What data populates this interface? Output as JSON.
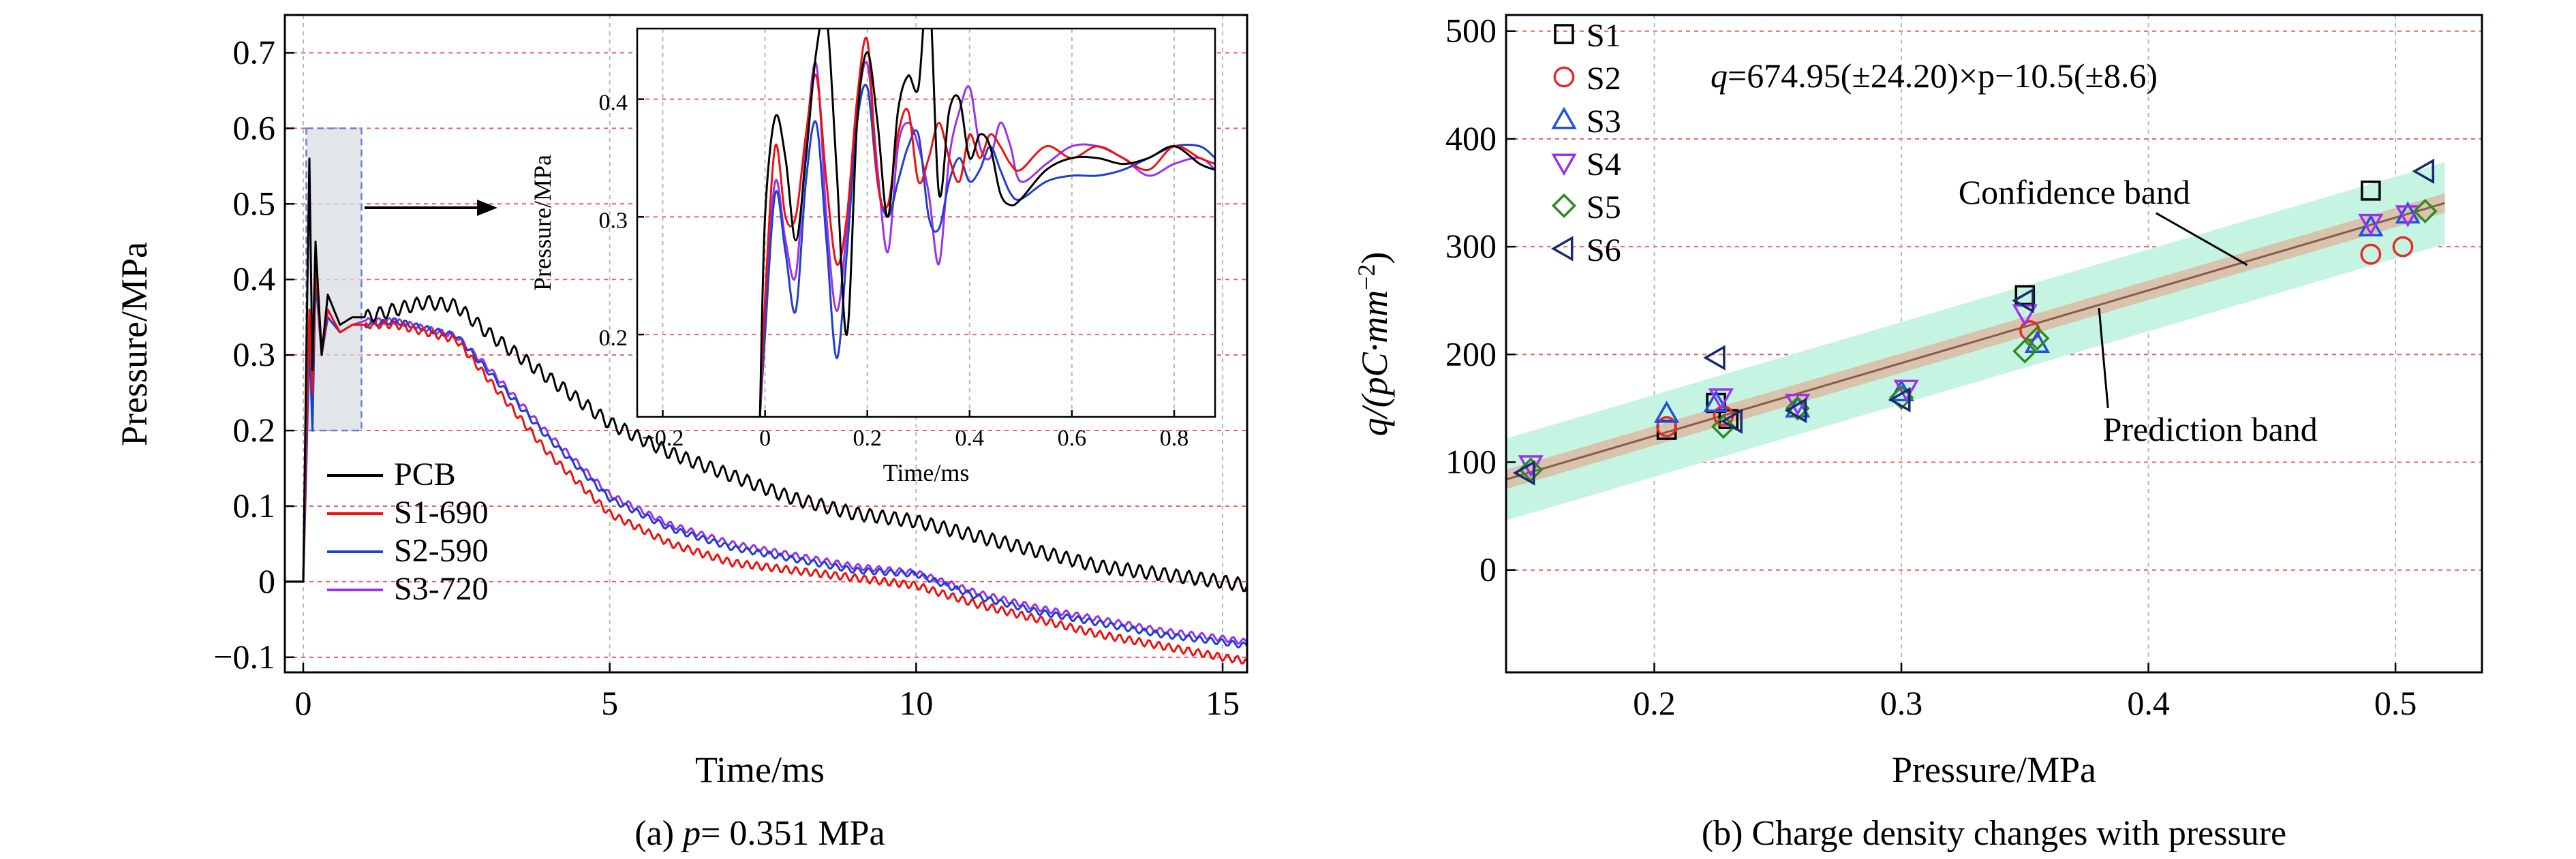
{
  "chart_data": [
    {
      "type": "line",
      "caption_prefix": "(a) ",
      "caption_var": "p",
      "caption_rest": "= 0.351 MPa",
      "xlabel": "Time/ms",
      "ylabel": "Pressure/MPa",
      "xlim": [
        -0.3,
        15.4
      ],
      "ylim": [
        -0.12,
        0.75
      ],
      "xticks": [
        "0",
        "5",
        "10",
        "15"
      ],
      "yticks": [
        "−0.1",
        "0",
        "0.1",
        "0.2",
        "0.3",
        "0.4",
        "0.5",
        "0.6",
        "0.7"
      ],
      "xtick_values": [
        0,
        5,
        10,
        15
      ],
      "ytick_values": [
        -0.1,
        0,
        0.1,
        0.2,
        0.3,
        0.4,
        0.5,
        0.6,
        0.7
      ],
      "grid": true,
      "legend_position": "bottom-left",
      "highlight_box": {
        "x": [
          0.05,
          0.95
        ],
        "y": [
          0.2,
          0.6
        ]
      },
      "series": [
        {
          "name": "PCB",
          "color": "#000000",
          "x": [
            -0.3,
            0.0,
            0.05,
            0.1,
            0.15,
            0.2,
            0.3,
            0.4,
            0.6,
            0.8,
            1.0,
            1.5,
            2.0,
            2.5,
            3.0,
            3.5,
            4.0,
            4.5,
            5.0,
            6.0,
            7.0,
            8.0,
            9.0,
            10.0,
            11.0,
            12.0,
            13.0,
            14.0,
            15.0,
            15.4
          ],
          "y": [
            0.0,
            0.0,
            0.3,
            0.56,
            0.28,
            0.45,
            0.3,
            0.38,
            0.34,
            0.35,
            0.35,
            0.36,
            0.37,
            0.365,
            0.33,
            0.3,
            0.27,
            0.24,
            0.21,
            0.17,
            0.14,
            0.11,
            0.09,
            0.08,
            0.06,
            0.04,
            0.02,
            0.01,
            0.0,
            -0.005
          ]
        },
        {
          "name": "S1-690",
          "color": "#ee1111",
          "x": [
            -0.3,
            0.0,
            0.05,
            0.1,
            0.15,
            0.2,
            0.3,
            0.4,
            0.6,
            0.8,
            1.0,
            1.5,
            2.0,
            2.5,
            3.0,
            3.5,
            4.0,
            4.5,
            5.0,
            6.0,
            7.0,
            8.0,
            9.0,
            10.0,
            11.0,
            12.0,
            13.0,
            14.0,
            15.0,
            15.4
          ],
          "y": [
            0.0,
            0.0,
            0.2,
            0.36,
            0.25,
            0.42,
            0.3,
            0.36,
            0.33,
            0.34,
            0.34,
            0.34,
            0.33,
            0.32,
            0.27,
            0.22,
            0.17,
            0.13,
            0.09,
            0.05,
            0.025,
            0.015,
            0.005,
            -0.005,
            -0.03,
            -0.05,
            -0.07,
            -0.085,
            -0.1,
            -0.105
          ]
        },
        {
          "name": "S2-590",
          "color": "#1f3fcf",
          "x": [
            -0.3,
            0.0,
            0.05,
            0.1,
            0.15,
            0.2,
            0.3,
            0.4,
            0.6,
            0.8,
            1.0,
            1.5,
            2.0,
            2.5,
            3.0,
            3.5,
            4.0,
            4.5,
            5.0,
            6.0,
            7.0,
            8.0,
            9.0,
            10.0,
            11.0,
            12.0,
            13.0,
            14.0,
            15.0,
            15.4
          ],
          "y": [
            0.0,
            0.0,
            0.15,
            0.32,
            0.2,
            0.4,
            0.3,
            0.35,
            0.33,
            0.34,
            0.34,
            0.345,
            0.335,
            0.325,
            0.28,
            0.235,
            0.19,
            0.15,
            0.11,
            0.07,
            0.045,
            0.03,
            0.015,
            0.01,
            -0.02,
            -0.04,
            -0.055,
            -0.07,
            -0.08,
            -0.085
          ]
        },
        {
          "name": "S3-720",
          "color": "#9933ee",
          "x": [
            -0.3,
            0.0,
            0.05,
            0.1,
            0.15,
            0.2,
            0.3,
            0.4,
            0.6,
            0.8,
            1.0,
            1.5,
            2.0,
            2.5,
            3.0,
            3.5,
            4.0,
            4.5,
            5.0,
            6.0,
            7.0,
            8.0,
            9.0,
            10.0,
            11.0,
            12.0,
            13.0,
            14.0,
            15.0,
            15.4
          ],
          "y": [
            0.0,
            0.0,
            0.18,
            0.34,
            0.22,
            0.42,
            0.31,
            0.36,
            0.33,
            0.34,
            0.345,
            0.345,
            0.335,
            0.325,
            0.285,
            0.24,
            0.195,
            0.155,
            0.115,
            0.075,
            0.05,
            0.035,
            0.02,
            0.012,
            -0.015,
            -0.035,
            -0.05,
            -0.065,
            -0.075,
            -0.08
          ]
        }
      ],
      "inset": {
        "xlabel": "Time/ms",
        "ylabel": "Pressure/MPa",
        "xlim": [
          -0.25,
          0.88
        ],
        "ylim": [
          0.13,
          0.46
        ],
        "xticks": [
          "−0.2",
          "0",
          "0.2",
          "0.4",
          "0.6",
          "0.8"
        ],
        "xtick_values": [
          -0.2,
          0,
          0.2,
          0.4,
          0.6,
          0.8
        ],
        "yticks": [
          "0.2",
          "0.3",
          "0.4"
        ],
        "ytick_values": [
          0.2,
          0.3,
          0.4
        ],
        "series": [
          {
            "name": "PCB",
            "color": "#000000",
            "x": [
              -0.01,
              0.0,
              0.02,
              0.04,
              0.06,
              0.08,
              0.1,
              0.12,
              0.14,
              0.16,
              0.18,
              0.2,
              0.22,
              0.24,
              0.26,
              0.28,
              0.3,
              0.32,
              0.34,
              0.36,
              0.38,
              0.4,
              0.42,
              0.44,
              0.46,
              0.48,
              0.5,
              0.55,
              0.6,
              0.65,
              0.7,
              0.75,
              0.8,
              0.85,
              0.88
            ],
            "y": [
              0.13,
              0.3,
              0.385,
              0.35,
              0.28,
              0.35,
              0.44,
              0.47,
              0.34,
              0.2,
              0.38,
              0.44,
              0.38,
              0.3,
              0.39,
              0.42,
              0.41,
              0.5,
              0.32,
              0.39,
              0.4,
              0.35,
              0.37,
              0.36,
              0.32,
              0.31,
              0.315,
              0.34,
              0.35,
              0.35,
              0.345,
              0.35,
              0.36,
              0.345,
              0.34
            ]
          },
          {
            "name": "S1-690",
            "color": "#ee1111",
            "x": [
              -0.01,
              0.0,
              0.02,
              0.04,
              0.06,
              0.08,
              0.1,
              0.12,
              0.14,
              0.16,
              0.18,
              0.2,
              0.22,
              0.24,
              0.26,
              0.28,
              0.3,
              0.32,
              0.34,
              0.36,
              0.38,
              0.4,
              0.42,
              0.44,
              0.46,
              0.48,
              0.5,
              0.55,
              0.6,
              0.65,
              0.7,
              0.75,
              0.8,
              0.85,
              0.88
            ],
            "y": [
              0.13,
              0.23,
              0.36,
              0.3,
              0.3,
              0.37,
              0.42,
              0.33,
              0.26,
              0.3,
              0.4,
              0.45,
              0.33,
              0.31,
              0.37,
              0.39,
              0.33,
              0.35,
              0.38,
              0.35,
              0.33,
              0.37,
              0.35,
              0.37,
              0.36,
              0.345,
              0.34,
              0.36,
              0.35,
              0.36,
              0.35,
              0.34,
              0.36,
              0.35,
              0.345
            ]
          },
          {
            "name": "S2-590",
            "color": "#1f3fcf",
            "x": [
              -0.01,
              0.0,
              0.02,
              0.04,
              0.06,
              0.08,
              0.1,
              0.12,
              0.14,
              0.16,
              0.18,
              0.2,
              0.22,
              0.24,
              0.26,
              0.28,
              0.3,
              0.32,
              0.34,
              0.36,
              0.38,
              0.4,
              0.42,
              0.44,
              0.46,
              0.48,
              0.5,
              0.55,
              0.6,
              0.65,
              0.7,
              0.75,
              0.8,
              0.85,
              0.88
            ],
            "y": [
              0.13,
              0.2,
              0.32,
              0.27,
              0.22,
              0.33,
              0.38,
              0.28,
              0.18,
              0.27,
              0.38,
              0.41,
              0.33,
              0.3,
              0.33,
              0.36,
              0.37,
              0.3,
              0.29,
              0.33,
              0.35,
              0.33,
              0.34,
              0.36,
              0.34,
              0.32,
              0.315,
              0.33,
              0.335,
              0.335,
              0.34,
              0.35,
              0.36,
              0.36,
              0.35
            ]
          },
          {
            "name": "S3-720",
            "color": "#9933ee",
            "x": [
              -0.01,
              0.0,
              0.02,
              0.04,
              0.06,
              0.08,
              0.1,
              0.12,
              0.14,
              0.16,
              0.18,
              0.2,
              0.22,
              0.24,
              0.26,
              0.28,
              0.3,
              0.32,
              0.34,
              0.36,
              0.38,
              0.4,
              0.42,
              0.44,
              0.46,
              0.48,
              0.5,
              0.55,
              0.6,
              0.65,
              0.7,
              0.75,
              0.8,
              0.85,
              0.88
            ],
            "y": [
              0.13,
              0.22,
              0.33,
              0.28,
              0.25,
              0.36,
              0.43,
              0.3,
              0.22,
              0.29,
              0.39,
              0.43,
              0.34,
              0.27,
              0.36,
              0.38,
              0.36,
              0.32,
              0.26,
              0.35,
              0.39,
              0.41,
              0.36,
              0.35,
              0.38,
              0.36,
              0.33,
              0.345,
              0.36,
              0.36,
              0.35,
              0.335,
              0.345,
              0.35,
              0.34
            ]
          }
        ]
      }
    },
    {
      "type": "scatter",
      "caption": "(b) Charge density changes with pressure",
      "xlabel": "Pressure/MPa",
      "ylabel_prefix": "q/(pC·mm",
      "ylabel_sup": "−2",
      "ylabel_suffix": ")",
      "xlim": [
        0.14,
        0.535
      ],
      "ylim": [
        -95,
        515
      ],
      "xticks": [
        "0.2",
        "0.3",
        "0.4",
        "0.5"
      ],
      "xtick_values": [
        0.2,
        0.3,
        0.4,
        0.5
      ],
      "yticks": [
        "0",
        "100",
        "200",
        "300",
        "400",
        "500"
      ],
      "ytick_values": [
        0,
        100,
        200,
        300,
        400,
        500
      ],
      "grid": true,
      "legend_position": "top-left",
      "equation_var": "q",
      "equation_rest": "=674.95(±24.20)×p−10.5(±8.6)",
      "fit": {
        "slope": 674.95,
        "intercept": -10.5,
        "color": "#8b5a4a",
        "x": [
          0.14,
          0.52
        ]
      },
      "confidence_band": {
        "half_width": 9,
        "color": "#d8c3ad"
      },
      "prediction_band": {
        "half_width": 38,
        "color": "#c6f4e2"
      },
      "annotations": [
        {
          "text": "Confidence band",
          "x": 0.37,
          "y": 340,
          "target": [
            0.44,
            283
          ]
        },
        {
          "text": "Prediction band",
          "x": 0.425,
          "y": 120,
          "target": [
            0.38,
            243
          ]
        }
      ],
      "series": [
        {
          "name": "S1",
          "marker": "square",
          "color": "#000000",
          "x": [
            0.205,
            0.225,
            0.23,
            0.35,
            0.49
          ],
          "y": [
            130,
            155,
            140,
            255,
            352
          ]
        },
        {
          "name": "S2",
          "marker": "circle",
          "color": "#e52b2b",
          "x": [
            0.205,
            0.228,
            0.352,
            0.49,
            0.503
          ],
          "y": [
            133,
            143,
            222,
            293,
            300
          ]
        },
        {
          "name": "S3",
          "marker": "triangle-up",
          "color": "#2150e0",
          "x": [
            0.205,
            0.225,
            0.258,
            0.3,
            0.355,
            0.49,
            0.505
          ],
          "y": [
            145,
            155,
            150,
            165,
            210,
            318,
            330
          ]
        },
        {
          "name": "S4",
          "marker": "triangle-down",
          "color": "#9933ee",
          "x": [
            0.15,
            0.227,
            0.258,
            0.302,
            0.35,
            0.49,
            0.505
          ],
          "y": [
            98,
            160,
            155,
            168,
            238,
            322,
            330
          ]
        },
        {
          "name": "S5",
          "marker": "diamond",
          "color": "#2e8b22",
          "x": [
            0.15,
            0.228,
            0.258,
            0.3,
            0.35,
            0.355,
            0.512
          ],
          "y": [
            93,
            133,
            150,
            160,
            203,
            215,
            333
          ]
        },
        {
          "name": "S6",
          "marker": "triangle-left",
          "color": "#1a2a70",
          "x": [
            0.148,
            0.225,
            0.232,
            0.258,
            0.3,
            0.35,
            0.512
          ],
          "y": [
            90,
            197,
            138,
            148,
            158,
            250,
            370
          ]
        }
      ]
    }
  ]
}
